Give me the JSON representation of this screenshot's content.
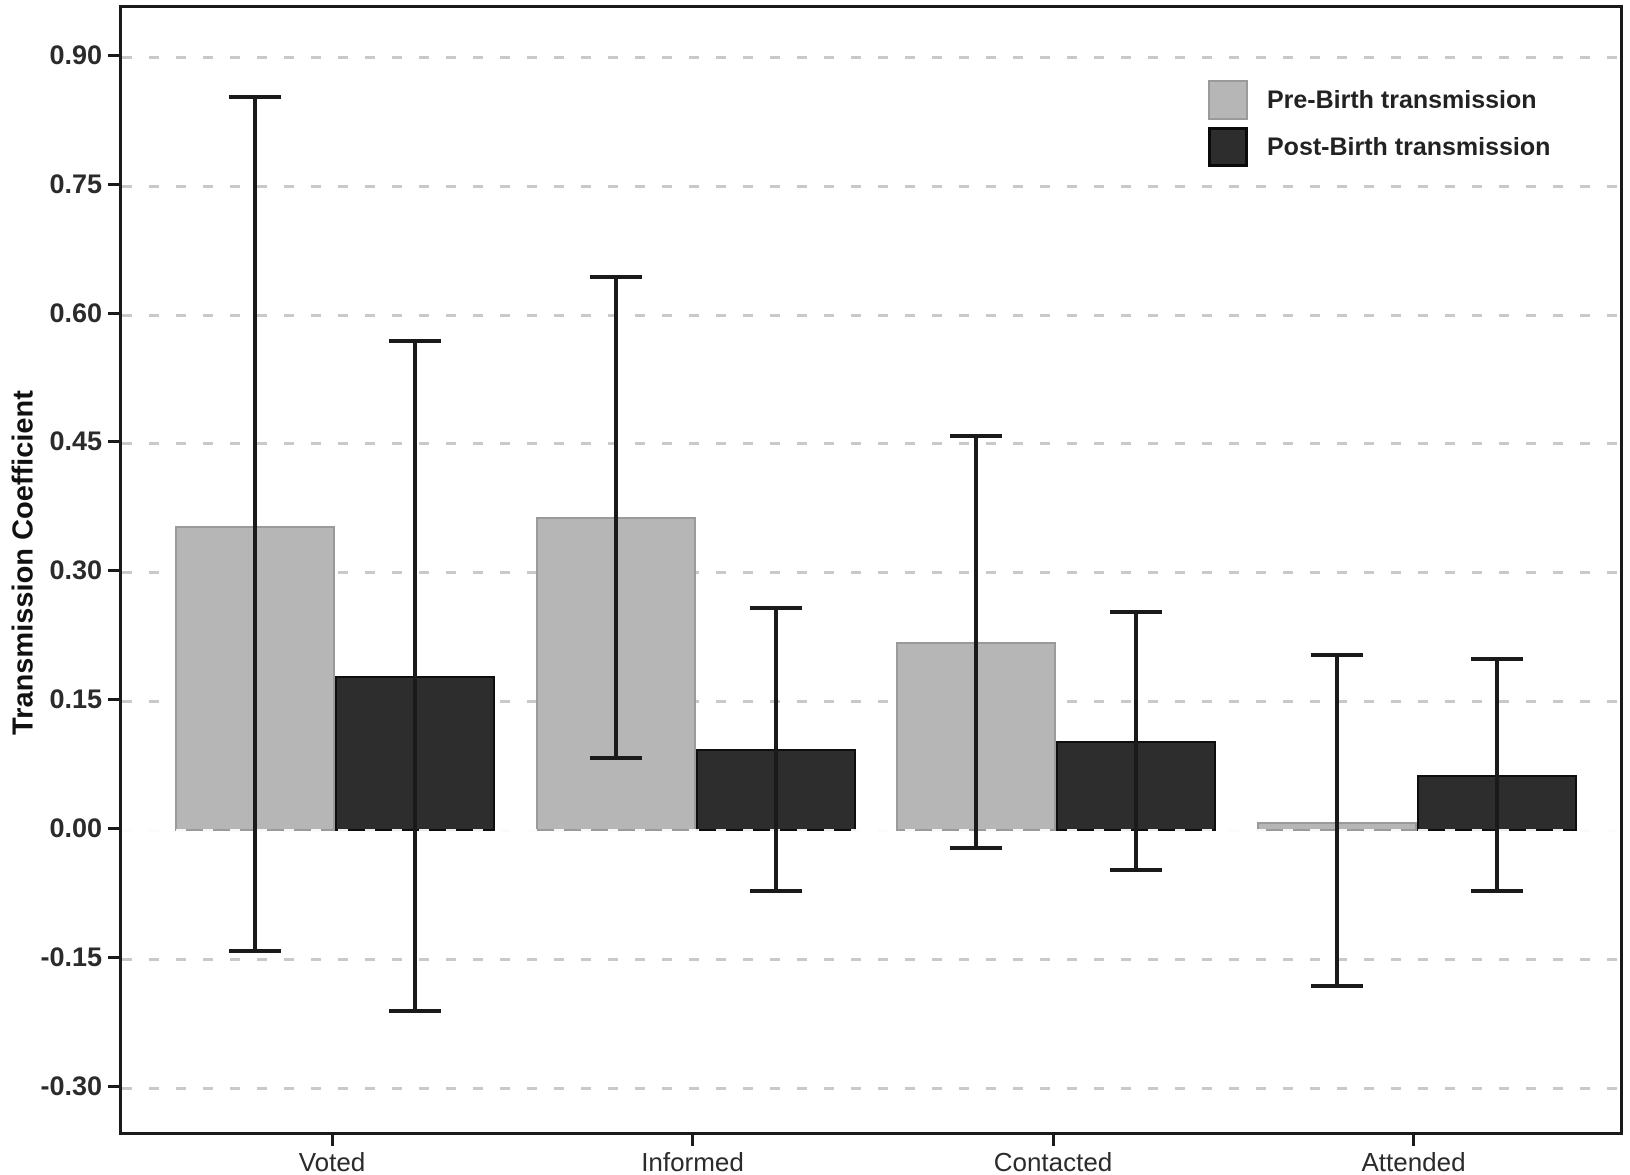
{
  "chart_data": {
    "type": "bar",
    "title": "",
    "xlabel": "",
    "ylabel": "Transmission Coefficient",
    "categories": [
      "Voted",
      "Informed",
      "Contacted",
      "Attended"
    ],
    "series": [
      {
        "name": "Pre-Birth transmission",
        "fill": "#b6b6b6",
        "stroke": "#9a9a9a",
        "values": [
          0.355,
          0.365,
          0.22,
          0.01
        ],
        "ci_low": [
          -0.14,
          0.085,
          -0.02,
          -0.18
        ],
        "ci_high": [
          0.855,
          0.645,
          0.46,
          0.205
        ]
      },
      {
        "name": "Post-Birth transmission",
        "fill": "#2d2d2d",
        "stroke": "#0e0e0e",
        "values": [
          0.18,
          0.095,
          0.105,
          0.065
        ],
        "ci_low": [
          -0.21,
          -0.07,
          -0.045,
          -0.07
        ],
        "ci_high": [
          0.57,
          0.26,
          0.255,
          0.2
        ]
      }
    ],
    "y_ticks": [
      "0.90",
      "0.75",
      "0.60",
      "0.45",
      "0.30",
      "0.15",
      "0.00",
      "-0.15",
      "-0.30"
    ],
    "ylim": [
      -0.36,
      0.96
    ],
    "grid": "horizontal-dashed",
    "gridline_color": "#c9c9c9",
    "frame_color": "#1a1a1a",
    "errorbar_color": "#1a1a1a",
    "legend_position": "top-right-inside",
    "background": "#ffffff"
  }
}
